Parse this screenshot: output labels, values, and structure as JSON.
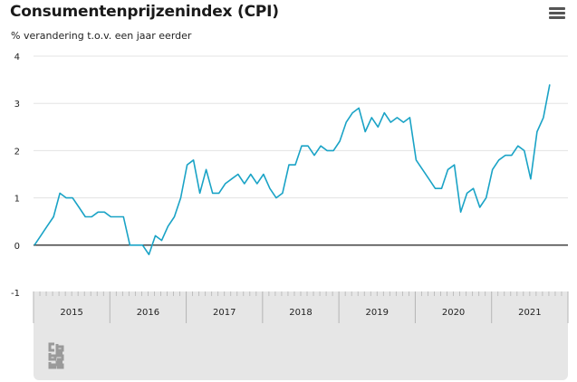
{
  "header": {
    "title": "Consumentenprijzenindex (CPI)",
    "subtitle": "% verandering t.o.v. een jaar eerder",
    "menu_icon": "hamburger-menu-icon"
  },
  "colors": {
    "line": "#1aa3c6",
    "grid": "#e3e3e3",
    "zero_line": "#333333",
    "axis_band": "#e6e6e6",
    "tick_text": "#222222"
  },
  "chart_data": {
    "type": "line",
    "title": "Consumentenprijzenindex (CPI)",
    "subtitle": "% verandering t.o.v. een jaar eerder",
    "ylim": [
      -1,
      4
    ],
    "yticks": [
      -1,
      0,
      1,
      2,
      3,
      4
    ],
    "grid": true,
    "x_categories": [
      "2015",
      "2016",
      "2017",
      "2018",
      "2019",
      "2020",
      "2021"
    ],
    "series": [
      {
        "start": "2015-01",
        "values": [
          0.0,
          0.2,
          0.4,
          0.6,
          1.1,
          1.0,
          1.0,
          0.8,
          0.6,
          0.6,
          0.7,
          0.7,
          0.6,
          0.6,
          0.6,
          0.0,
          0.0,
          0.0,
          -0.2,
          0.2,
          0.1,
          0.4,
          0.6,
          1.0,
          1.7,
          1.8,
          1.1,
          1.6,
          1.1,
          1.1,
          1.3,
          1.4,
          1.5,
          1.3,
          1.5,
          1.3,
          1.5,
          1.2,
          1.0,
          1.1,
          1.7,
          1.7,
          2.1,
          2.1,
          1.9,
          2.1,
          2.0,
          2.0,
          2.2,
          2.6,
          2.8,
          2.9,
          2.4,
          2.7,
          2.5,
          2.8,
          2.6,
          2.7,
          2.6,
          2.7,
          1.8,
          1.6,
          1.4,
          1.2,
          1.2,
          1.6,
          1.7,
          0.7,
          1.1,
          1.2,
          0.8,
          1.0,
          1.6,
          1.8,
          1.9,
          1.9,
          2.1,
          2.0,
          1.4,
          2.4,
          2.7,
          3.4
        ]
      }
    ]
  }
}
